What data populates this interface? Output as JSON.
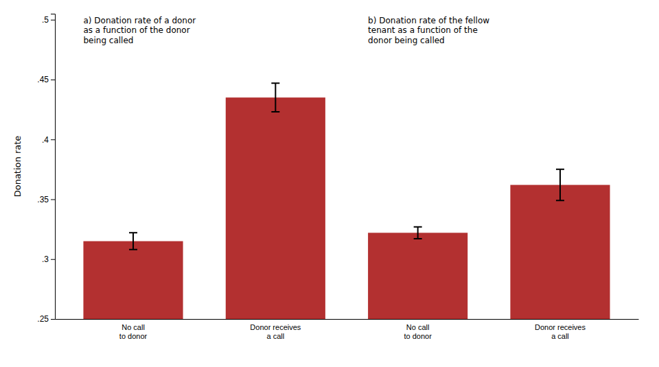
{
  "chart_data": {
    "type": "bar",
    "categories": [
      "No call\nto donor",
      "Donor receives\na call",
      "No call\nto donor",
      "Donor receives\na call"
    ],
    "values": [
      0.315,
      0.435,
      0.322,
      0.362
    ],
    "errors": [
      0.007,
      0.012,
      0.005,
      0.013
    ],
    "color": "#B33030",
    "ylabel": "Donation rate",
    "annotations": [
      "a) Donation rate of a donor\nas a function of the donor\nbeing called",
      "b) Donation rate of the fellow\ntenant as a function of the\ndonor being called"
    ],
    "ylim": [
      0.25,
      0.505
    ],
    "yticks": [
      {
        "value": 0.25,
        "label": ".25"
      },
      {
        "value": 0.3,
        "label": ".3"
      },
      {
        "value": 0.35,
        "label": ".35"
      },
      {
        "value": 0.4,
        "label": ".4"
      },
      {
        "value": 0.45,
        "label": ".45"
      },
      {
        "value": 0.5,
        "label": ".5"
      }
    ],
    "grid": false
  }
}
